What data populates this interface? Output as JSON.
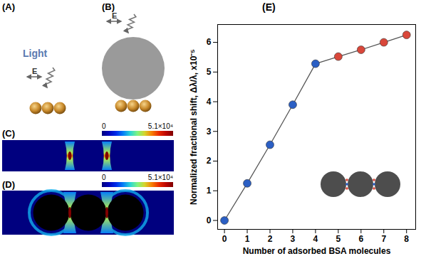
{
  "diagram": {
    "panels": [
      {
        "label": "(A)",
        "light_label": "Light",
        "field_label": "E"
      },
      {
        "label": "(B)",
        "field_label": "E"
      },
      {
        "label": "(C)",
        "colorbar": {
          "range": [
            0,
            51000
          ],
          "ticks": [
            0,
            {
              "value": 51000,
              "label": "5.1×10⁴"
            }
          ]
        }
      },
      {
        "label": "(D)",
        "colorbar": {
          "range": [
            0,
            51000
          ],
          "ticks": [
            0,
            {
              "value": 51000,
              "label": "5.1×10⁴"
            }
          ]
        }
      }
    ]
  },
  "chart_data": {
    "type": "line",
    "title": "(E)",
    "x_label": "Number of adsorbed BSA molecules",
    "y_label": "Normalized fractional shift, Δλ/λ, x10⁻⁵",
    "x": [
      0,
      1,
      2,
      3,
      4,
      5,
      6,
      7,
      8
    ],
    "values": [
      0,
      1.25,
      2.55,
      3.9,
      5.28,
      5.52,
      5.75,
      6.0,
      6.25
    ],
    "color": "#555555",
    "colors": [
      "#2b5fc4",
      "#2b5fc4",
      "#2b5fc4",
      "#2b5fc4",
      "#2b5fc4",
      "#d9473a",
      "#d9473a",
      "#d9473a",
      "#d9473a"
    ],
    "marker": "circle",
    "xlim": [
      -0.3,
      8.4
    ],
    "ylim": [
      -0.3,
      6.6
    ],
    "xticks": [
      0,
      1,
      2,
      3,
      4,
      5,
      6,
      7,
      8
    ],
    "yticks": [
      0,
      1,
      2,
      3,
      4,
      5,
      6
    ],
    "grid": false
  }
}
